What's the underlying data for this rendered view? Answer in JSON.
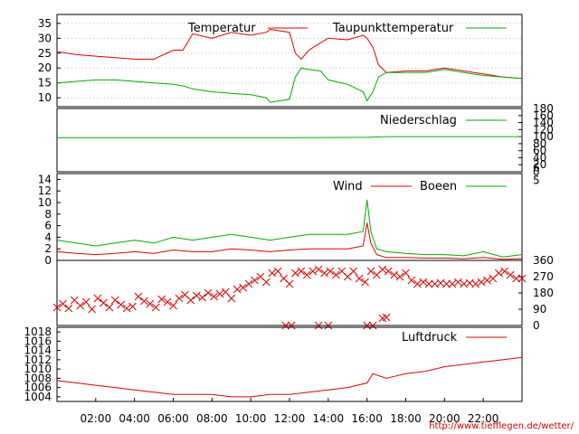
{
  "credit": "http://www.tiefflegen.de/wetter/",
  "colors": {
    "red": "#dd0000",
    "green": "#00aa00"
  },
  "chart_data": [
    {
      "type": "line",
      "id": "temp",
      "ylim": [
        7,
        38
      ],
      "yticks": [
        "35",
        "30",
        "25",
        "20",
        "15",
        "10"
      ],
      "x": [
        0,
        1,
        2,
        3,
        4,
        5,
        6,
        6.5,
        7,
        8,
        9,
        10,
        10.8,
        11,
        12,
        12.3,
        12.6,
        13,
        13.6,
        14,
        15,
        15.8,
        16,
        16.3,
        16.6,
        17,
        18,
        19,
        20,
        21,
        22,
        23,
        24
      ],
      "series": [
        {
          "name": "Temperatur",
          "color": "#dd0000",
          "values": [
            25.5,
            24.5,
            24,
            23.5,
            23,
            23,
            26,
            26,
            31.5,
            30,
            32,
            31,
            32,
            33,
            32,
            25,
            23,
            26,
            28.5,
            30,
            29.5,
            31,
            30,
            27,
            21,
            18.5,
            19,
            19,
            20,
            19,
            18,
            17,
            16.5
          ]
        },
        {
          "name": "Taupunkttemperatur",
          "color": "#00aa00",
          "values": [
            15,
            15.5,
            16,
            16,
            15.5,
            15,
            14.5,
            14,
            13,
            12,
            11.5,
            11,
            10,
            8.5,
            9.5,
            17,
            20,
            19.5,
            19,
            16,
            14.5,
            12,
            9,
            12,
            17,
            18.5,
            18.5,
            18.5,
            19.5,
            18.5,
            17.5,
            17,
            16.5
          ]
        }
      ]
    },
    {
      "type": "line",
      "id": "rain",
      "ylim": [
        0,
        180
      ],
      "yticks": [
        "180",
        "160",
        "140",
        "120",
        "100",
        "80",
        "60",
        "40",
        "20",
        "0"
      ],
      "x": [
        0,
        12,
        16,
        17,
        24
      ],
      "series": [
        {
          "name": "Niederschlag",
          "color": "#00aa00",
          "values": [
            97,
            97,
            98,
            100,
            100
          ]
        }
      ]
    },
    {
      "type": "line",
      "id": "wind",
      "ylim": [
        0,
        15
      ],
      "yticks": [
        "14",
        "12",
        "10",
        "8",
        "6",
        "4",
        "2",
        "0"
      ],
      "yticks_right": [
        "6",
        "5"
      ],
      "x": [
        0,
        1,
        2,
        3,
        4,
        5,
        6,
        7,
        8,
        9,
        10,
        11,
        12,
        13,
        14,
        15,
        15.8,
        16,
        16.2,
        16.5,
        17,
        18,
        19,
        20,
        21,
        22,
        23,
        24
      ],
      "series": [
        {
          "name": "Wind",
          "color": "#dd0000",
          "values": [
            1.5,
            1.2,
            1,
            1.2,
            1.5,
            1.2,
            1.8,
            1.5,
            1.5,
            2,
            1.8,
            1.5,
            1.8,
            2,
            2,
            2,
            2.5,
            6.5,
            3,
            1,
            0.5,
            0.5,
            0.4,
            0.4,
            0.3,
            0.5,
            0.2,
            0.3
          ]
        },
        {
          "name": "Boeen",
          "color": "#00aa00",
          "values": [
            3.5,
            3,
            2.5,
            3,
            3.5,
            3,
            4,
            3.5,
            4,
            4.5,
            4,
            3.5,
            4,
            4.5,
            4.5,
            4.5,
            5,
            10.5,
            5,
            2,
            1.5,
            1.2,
            1,
            1,
            0.8,
            1.5,
            0.6,
            1
          ]
        }
      ]
    },
    {
      "type": "scatter",
      "id": "direction",
      "ylim": [
        0,
        360
      ],
      "yticks_right": [
        "360",
        "270",
        "180",
        "90",
        "0"
      ],
      "series": [
        {
          "name": "",
          "color": "#dd0000",
          "x": [
            0,
            0.3,
            0.6,
            0.9,
            1.2,
            1.5,
            1.8,
            2.1,
            2.4,
            2.7,
            3.0,
            3.3,
            3.6,
            3.9,
            4.2,
            4.5,
            4.8,
            5.1,
            5.4,
            5.7,
            6.0,
            6.3,
            6.6,
            6.9,
            7.2,
            7.5,
            7.8,
            8.1,
            8.4,
            8.7,
            9.0,
            9.3,
            9.6,
            9.9,
            10.2,
            10.5,
            10.8,
            11.1,
            11.4,
            11.7,
            12.0,
            12.3,
            12.6,
            12.9,
            13.2,
            13.5,
            13.8,
            14.1,
            14.4,
            14.7,
            15.0,
            15.3,
            15.6,
            15.9,
            16.2,
            16.5,
            16.8,
            17.1,
            17.4,
            17.7,
            18.0,
            18.3,
            18.6,
            18.9,
            19.2,
            19.5,
            19.8,
            20.1,
            20.4,
            20.7,
            21.0,
            21.3,
            21.6,
            21.9,
            22.2,
            22.5,
            22.8,
            23.1,
            23.4,
            23.7,
            24.0
          ],
          "values": [
            100,
            120,
            95,
            140,
            110,
            130,
            90,
            150,
            125,
            100,
            140,
            115,
            95,
            105,
            160,
            135,
            120,
            100,
            145,
            130,
            110,
            150,
            170,
            140,
            165,
            155,
            180,
            160,
            175,
            185,
            150,
            200,
            210,
            230,
            250,
            270,
            240,
            290,
            300,
            260,
            230,
            290,
            300,
            280,
            300,
            310,
            290,
            300,
            280,
            300,
            270,
            300,
            260,
            240,
            300,
            280,
            310,
            300,
            280,
            270,
            290,
            250,
            230,
            240,
            230,
            230,
            235,
            230,
            230,
            240,
            230,
            235,
            230,
            240,
            250,
            260,
            290,
            300,
            280,
            260,
            260
          ]
        },
        {
          "name": "",
          "color": "#dd0000",
          "x": [
            11.8,
            12.1,
            13.5,
            14.0,
            16.0,
            16.3,
            16.8,
            17.0
          ],
          "values": [
            0,
            0,
            0,
            0,
            0,
            0,
            40,
            45
          ]
        }
      ]
    },
    {
      "type": "line",
      "id": "pressure",
      "ylim": [
        1003,
        1019
      ],
      "yticks": [
        "1018",
        "1016",
        "1014",
        "1012",
        "1010",
        "1008",
        "1006",
        "1004"
      ],
      "x": [
        0,
        1,
        2,
        3,
        4,
        5,
        6,
        7,
        8,
        9,
        10,
        11,
        12,
        13,
        14,
        15,
        16,
        16.3,
        17,
        17.5,
        18,
        19,
        20,
        21,
        22,
        23,
        24
      ],
      "series": [
        {
          "name": "Luftdruck",
          "color": "#dd0000",
          "values": [
            1007.5,
            1007,
            1006.5,
            1006,
            1005.5,
            1005,
            1004.5,
            1004.5,
            1004.5,
            1004,
            1004,
            1004.5,
            1004.5,
            1005,
            1005.5,
            1006,
            1007,
            1009,
            1008,
            1008.5,
            1009,
            1009.5,
            1010.5,
            1011,
            1011.5,
            1012,
            1012.5
          ]
        }
      ]
    }
  ],
  "x_axis": {
    "xlim": [
      0,
      24
    ],
    "ticks": [
      2,
      4,
      6,
      8,
      10,
      12,
      14,
      16,
      18,
      20,
      22
    ],
    "tick_labels": [
      "02:00",
      "04:00",
      "06:00",
      "08:00",
      "10:00",
      "12:00",
      "14:00",
      "16:00",
      "18:00",
      "20:00",
      "22:00"
    ]
  }
}
